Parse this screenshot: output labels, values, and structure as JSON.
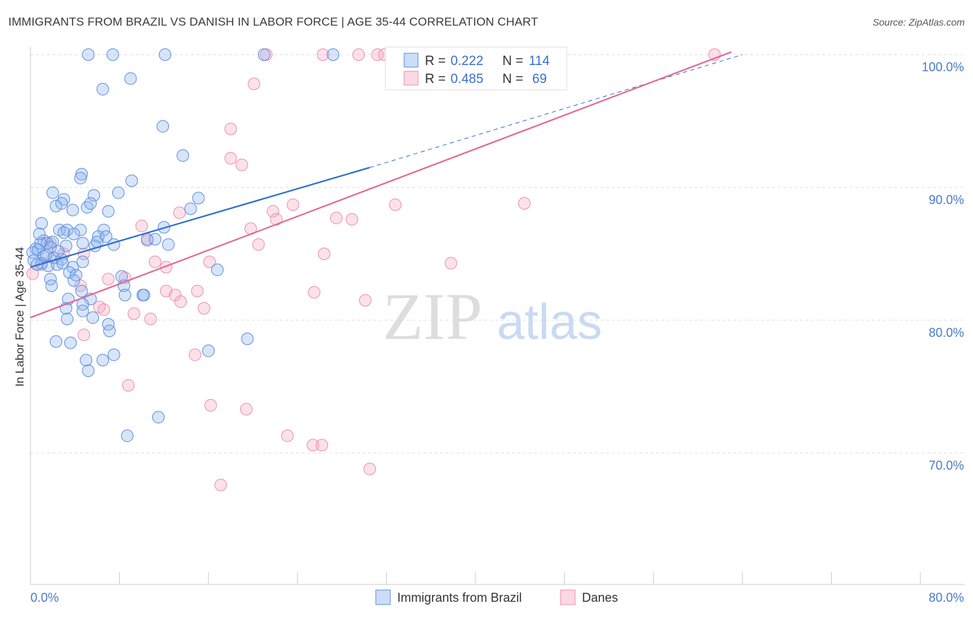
{
  "title": "IMMIGRANTS FROM BRAZIL VS DANISH IN LABOR FORCE | AGE 35-44 CORRELATION CHART",
  "source": "Source: ZipAtlas.com",
  "watermark": {
    "zip": "ZIP",
    "atlas": "atlas"
  },
  "colors": {
    "blue_fill": "rgba(143,180,238,0.35)",
    "blue_stroke": "#5b8fe0",
    "blue_line": "#2f6fd0",
    "pink_fill": "rgba(244,170,196,0.35)",
    "pink_stroke": "#ec8fb0",
    "pink_line": "#e06b97",
    "grid": "#dddddd",
    "tick_text": "#4a7bc8"
  },
  "legend": {
    "r_label": "R =",
    "n_label": "N =",
    "rows": [
      {
        "r": "0.222",
        "n": "114"
      },
      {
        "r": "0.485",
        "n": "69"
      }
    ]
  },
  "chart_data": {
    "type": "scatter",
    "title": "IMMIGRANTS FROM BRAZIL VS DANISH IN LABOR FORCE | AGE 35-44 CORRELATION CHART",
    "xlabel": "",
    "ylabel": "In Labor Force | Age 35-44",
    "xlim": [
      0,
      80
    ],
    "ylim": [
      60,
      101.5
    ],
    "x_tick_labels": [
      "0.0%",
      "80.0%"
    ],
    "y_ticks": [
      70,
      80,
      90,
      100
    ],
    "y_tick_labels": [
      "70.0%",
      "80.0%",
      "90.0%",
      "100.0%"
    ],
    "grid": true,
    "legend_position": "top-center",
    "series": [
      {
        "name": "Immigrants from Brazil",
        "r": 0.222,
        "n": 114,
        "trend": {
          "x": [
            0,
            30.5
          ],
          "y": [
            84.0,
            91.5
          ],
          "dashed_to": [
            64,
            100.0
          ]
        },
        "points": [
          [
            5.2,
            100
          ],
          [
            7.4,
            100
          ],
          [
            12.1,
            100
          ],
          [
            21.0,
            100
          ],
          [
            27.2,
            100
          ],
          [
            33.4,
            100
          ],
          [
            9.0,
            98.2
          ],
          [
            6.5,
            97.4
          ],
          [
            11.9,
            94.6
          ],
          [
            13.7,
            92.4
          ],
          [
            4.6,
            91.0
          ],
          [
            4.5,
            90.7
          ],
          [
            9.1,
            90.5
          ],
          [
            2.0,
            89.6
          ],
          [
            5.7,
            89.4
          ],
          [
            7.9,
            89.6
          ],
          [
            3.0,
            89.1
          ],
          [
            15.1,
            89.2
          ],
          [
            2.3,
            88.6
          ],
          [
            2.8,
            88.8
          ],
          [
            5.1,
            88.5
          ],
          [
            5.4,
            88.8
          ],
          [
            3.8,
            88.3
          ],
          [
            7.0,
            88.2
          ],
          [
            14.4,
            88.4
          ],
          [
            12.0,
            87.0
          ],
          [
            1.0,
            87.3
          ],
          [
            2.6,
            86.8
          ],
          [
            3.3,
            86.8
          ],
          [
            4.5,
            86.8
          ],
          [
            6.6,
            86.8
          ],
          [
            3.9,
            86.5
          ],
          [
            6.1,
            86.3
          ],
          [
            3.0,
            86.6
          ],
          [
            6.8,
            86.3
          ],
          [
            1.2,
            86.0
          ],
          [
            2.0,
            85.9
          ],
          [
            4.7,
            85.8
          ],
          [
            5.8,
            85.6
          ],
          [
            6.0,
            85.9
          ],
          [
            7.5,
            85.7
          ],
          [
            10.5,
            86.1
          ],
          [
            11.2,
            86.1
          ],
          [
            12.4,
            85.7
          ],
          [
            3.2,
            85.6
          ],
          [
            0.5,
            85.4
          ],
          [
            1.5,
            85.8
          ],
          [
            0.9,
            85.8
          ],
          [
            0.7,
            85.3
          ],
          [
            1.8,
            85.5
          ],
          [
            0.2,
            85.1
          ],
          [
            0.3,
            84.5
          ],
          [
            1.2,
            84.8
          ],
          [
            2.1,
            84.7
          ],
          [
            2.8,
            84.6
          ],
          [
            4.7,
            84.4
          ],
          [
            1.0,
            84.3
          ],
          [
            1.6,
            84.1
          ],
          [
            2.4,
            84.2
          ],
          [
            2.9,
            84.3
          ],
          [
            3.8,
            84.0
          ],
          [
            3.5,
            83.6
          ],
          [
            4.1,
            83.4
          ],
          [
            8.2,
            83.3
          ],
          [
            16.8,
            83.8
          ],
          [
            1.8,
            83.1
          ],
          [
            3.9,
            83.0
          ],
          [
            4.6,
            82.2
          ],
          [
            8.4,
            82.6
          ],
          [
            8.5,
            81.9
          ],
          [
            10.1,
            81.9
          ],
          [
            10.2,
            81.9
          ],
          [
            1.9,
            82.6
          ],
          [
            5.4,
            81.6
          ],
          [
            3.4,
            81.6
          ],
          [
            4.7,
            81.2
          ],
          [
            3.2,
            80.9
          ],
          [
            4.7,
            80.7
          ],
          [
            5.6,
            80.2
          ],
          [
            7.0,
            79.7
          ],
          [
            7.1,
            79.2
          ],
          [
            3.3,
            80.1
          ],
          [
            3.6,
            78.3
          ],
          [
            19.5,
            78.6
          ],
          [
            5.0,
            77.0
          ],
          [
            7.5,
            77.4
          ],
          [
            16.0,
            77.7
          ],
          [
            6.5,
            77.0
          ],
          [
            5.2,
            76.2
          ],
          [
            11.5,
            72.7
          ],
          [
            8.7,
            71.3
          ],
          [
            2.3,
            78.4
          ],
          [
            0.8,
            86.5
          ],
          [
            1.4,
            84.9
          ],
          [
            0.6,
            84.2
          ],
          [
            2.5,
            85.2
          ]
        ]
      },
      {
        "name": "Danes",
        "r": 0.485,
        "n": 69,
        "trend": {
          "x": [
            0,
            63
          ],
          "y": [
            80.2,
            100.2
          ]
        },
        "points": [
          [
            21.2,
            100
          ],
          [
            26.3,
            100
          ],
          [
            29.5,
            100
          ],
          [
            31.2,
            100
          ],
          [
            31.8,
            100
          ],
          [
            42.5,
            100
          ],
          [
            47.2,
            100
          ],
          [
            61.5,
            100
          ],
          [
            20.1,
            97.8
          ],
          [
            18.0,
            94.4
          ],
          [
            18.0,
            92.2
          ],
          [
            19.0,
            91.7
          ],
          [
            21.8,
            88.2
          ],
          [
            22.1,
            87.6
          ],
          [
            23.6,
            88.7
          ],
          [
            27.5,
            87.7
          ],
          [
            28.9,
            87.6
          ],
          [
            32.8,
            88.7
          ],
          [
            44.4,
            88.8
          ],
          [
            13.4,
            88.1
          ],
          [
            10.0,
            87.1
          ],
          [
            19.8,
            86.9
          ],
          [
            10.5,
            86.0
          ],
          [
            20.5,
            85.7
          ],
          [
            26.4,
            85.0
          ],
          [
            37.8,
            84.3
          ],
          [
            16.1,
            84.4
          ],
          [
            11.2,
            84.4
          ],
          [
            12.2,
            84.0
          ],
          [
            1.8,
            85.8
          ],
          [
            2.1,
            84.7
          ],
          [
            3.0,
            85.0
          ],
          [
            4.8,
            85.0
          ],
          [
            1.0,
            84.2
          ],
          [
            0.2,
            83.5
          ],
          [
            7.0,
            83.1
          ],
          [
            8.5,
            83.2
          ],
          [
            4.5,
            82.6
          ],
          [
            12.2,
            82.2
          ],
          [
            13.0,
            81.9
          ],
          [
            15.0,
            82.2
          ],
          [
            25.5,
            82.1
          ],
          [
            30.1,
            81.5
          ],
          [
            6.2,
            81.0
          ],
          [
            13.5,
            81.4
          ],
          [
            15.6,
            80.9
          ],
          [
            6.6,
            80.8
          ],
          [
            9.3,
            80.5
          ],
          [
            10.8,
            80.1
          ],
          [
            4.8,
            78.9
          ],
          [
            14.8,
            77.4
          ],
          [
            8.8,
            75.1
          ],
          [
            16.2,
            73.6
          ],
          [
            19.4,
            73.3
          ],
          [
            23.1,
            71.3
          ],
          [
            25.4,
            70.6
          ],
          [
            26.2,
            70.6
          ],
          [
            30.5,
            68.8
          ],
          [
            17.1,
            67.6
          ]
        ]
      }
    ]
  },
  "bottom_legend": [
    {
      "label": "Immigrants from Brazil"
    },
    {
      "label": "Danes"
    }
  ]
}
